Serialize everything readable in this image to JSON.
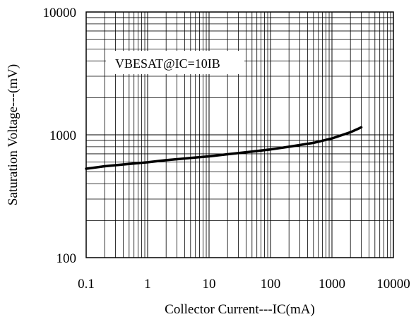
{
  "chart_data": {
    "type": "line",
    "title": "",
    "xlabel": "Collector Current---IC(mA)",
    "ylabel": "Saturation Voltage---(mV)",
    "x_scale": "log",
    "y_scale": "log",
    "xlim": [
      0.1,
      10000
    ],
    "ylim": [
      100,
      10000
    ],
    "grid": true,
    "x_ticks": [
      0.1,
      1,
      10,
      100,
      1000,
      10000
    ],
    "x_tick_labels": [
      "0.1",
      "1",
      "10",
      "100",
      "1000",
      "10000"
    ],
    "y_ticks": [
      100,
      1000,
      10000
    ],
    "y_tick_labels": [
      "100",
      "1000",
      "10000"
    ],
    "annotation": "VBESAT@IC=10IB",
    "series": [
      {
        "color": "#000000",
        "x": [
          0.1,
          0.2,
          0.5,
          1,
          2,
          5,
          10,
          20,
          50,
          100,
          200,
          500,
          1000,
          2000,
          3000
        ],
        "y": [
          530,
          555,
          580,
          598,
          622,
          648,
          668,
          695,
          730,
          760,
          800,
          860,
          935,
          1050,
          1150
        ]
      }
    ]
  }
}
